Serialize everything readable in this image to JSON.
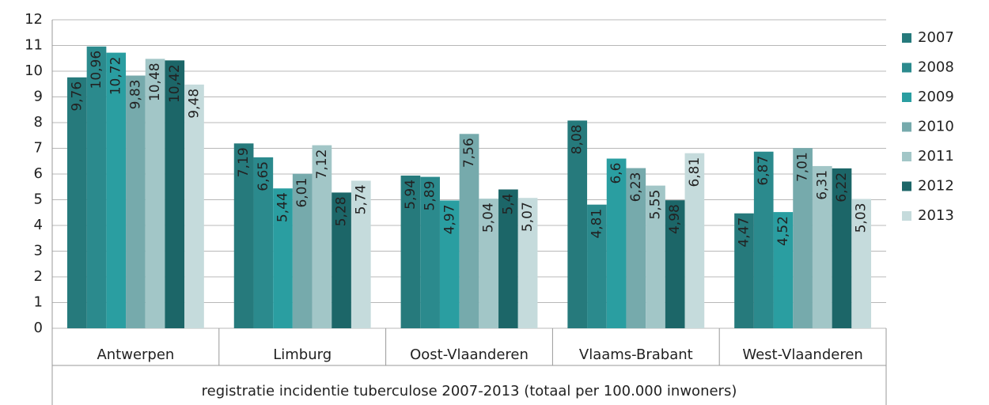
{
  "chart_data": {
    "type": "bar",
    "xlabel": "registratie incidentie tuberculose 2007-2013 (totaal per 100.000 inwoners)",
    "categories": [
      "Antwerpen",
      "Limburg",
      "Oost-Vlaanderen",
      "Vlaams-Brabant",
      "West-Vlaanderen"
    ],
    "series": [
      {
        "name": "2007",
        "color": "#267a7c",
        "values": [
          9.76,
          7.19,
          5.94,
          8.08,
          4.47
        ],
        "value_labels": [
          "9,76",
          "7,19",
          "5,94",
          "8,08",
          "4,47"
        ]
      },
      {
        "name": "2008",
        "color": "#2b8a8d",
        "values": [
          10.96,
          6.65,
          5.89,
          4.81,
          6.87
        ],
        "value_labels": [
          "10,96",
          "6,65",
          "5,89",
          "4,81",
          "6,87"
        ]
      },
      {
        "name": "2009",
        "color": "#2a9ea1",
        "values": [
          10.72,
          5.44,
          4.97,
          6.6,
          4.52
        ],
        "value_labels": [
          "10,72",
          "5,44",
          "4,97",
          "6,6",
          "4,52"
        ]
      },
      {
        "name": "2010",
        "color": "#76aaac",
        "values": [
          9.83,
          6.01,
          7.56,
          6.23,
          7.01
        ],
        "value_labels": [
          "9,83",
          "6,01",
          "7,56",
          "6,23",
          "7,01"
        ]
      },
      {
        "name": "2011",
        "color": "#a2c6c7",
        "values": [
          10.48,
          7.12,
          5.04,
          5.55,
          6.31
        ],
        "value_labels": [
          "10,48",
          "7,12",
          "5,04",
          "5,55",
          "6,31"
        ]
      },
      {
        "name": "2012",
        "color": "#1c6668",
        "values": [
          10.42,
          5.28,
          5.4,
          4.98,
          6.22
        ],
        "value_labels": [
          "10,42",
          "5,28",
          "5,4",
          "4,98",
          "6,22"
        ]
      },
      {
        "name": "2013",
        "color": "#c5dbdc",
        "values": [
          9.48,
          5.74,
          5.07,
          6.81,
          5.03
        ],
        "value_labels": [
          "9,48",
          "5,74",
          "5,07",
          "6,81",
          "5,03"
        ]
      }
    ],
    "ylim": [
      0,
      12
    ],
    "yticks": [
      0,
      1,
      2,
      3,
      4,
      5,
      6,
      7,
      8,
      9,
      10,
      11,
      12
    ],
    "grid": true,
    "legend": "right"
  }
}
